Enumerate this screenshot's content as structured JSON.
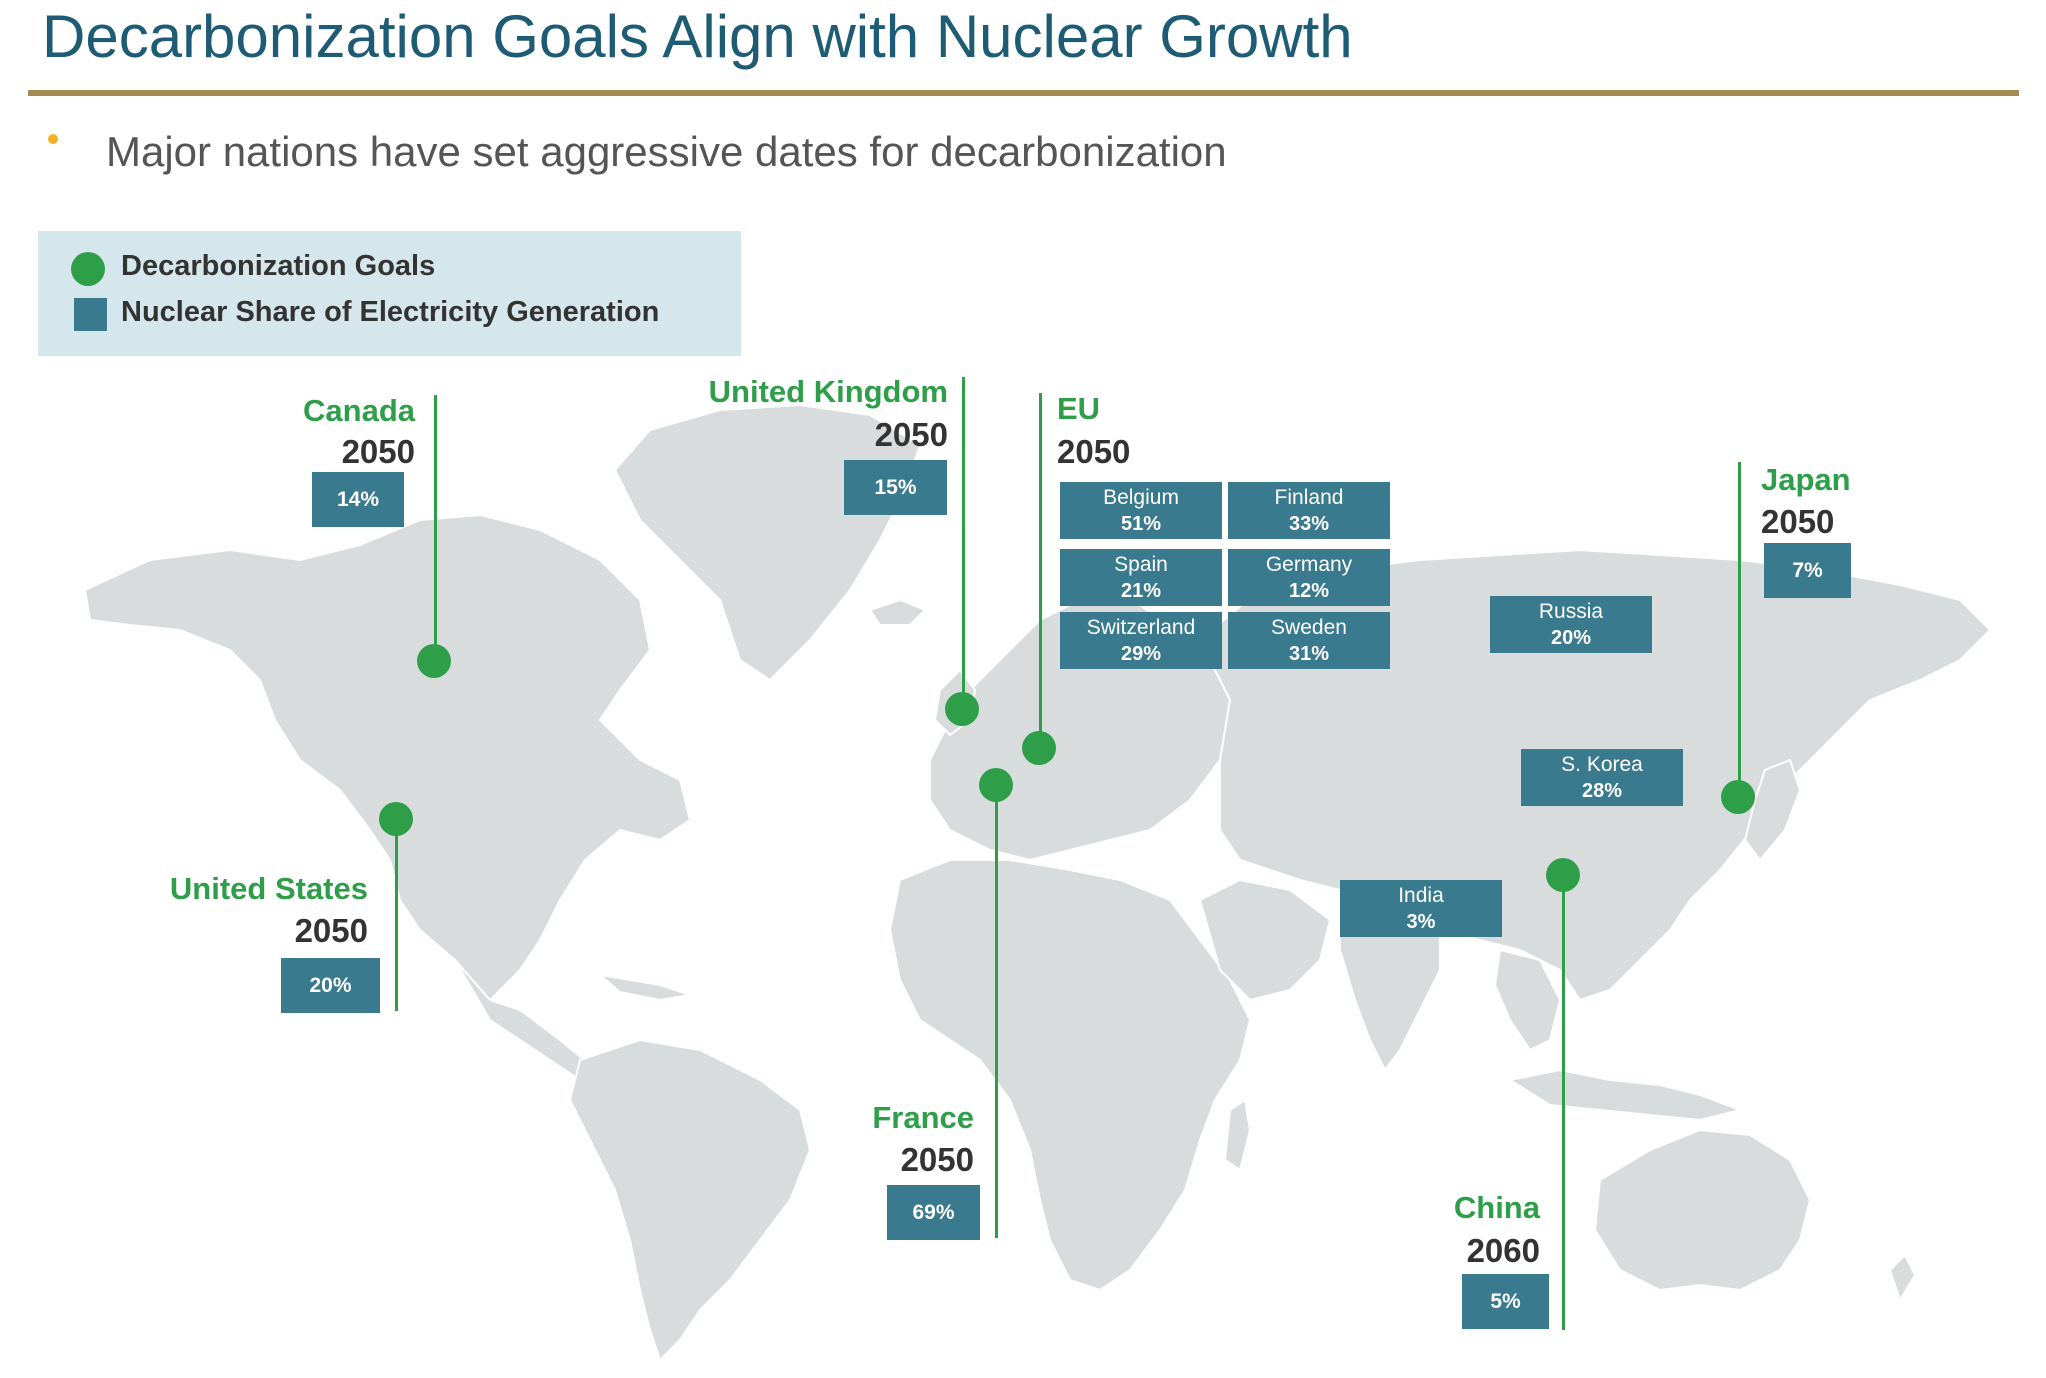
{
  "title": "Decarbonization Goals Align with Nuclear Growth",
  "bullet": "Major nations have set aggressive dates for decarbonization",
  "legend": {
    "goals": "Decarbonization Goals",
    "nuclear": "Nuclear Share of Electricity Generation"
  },
  "colors": {
    "title": "#1e5b74",
    "rule": "#a38c52",
    "goal_green": "#2e9e48",
    "nuclear_teal": "#3a7a8e",
    "land": "#d9dcdd",
    "legend_bg": "#d6e6ed"
  },
  "goals": {
    "canada": {
      "country": "Canada",
      "year": "2050",
      "share": "14%"
    },
    "uk": {
      "country": "United Kingdom",
      "year": "2050",
      "share": "15%"
    },
    "eu": {
      "country": "EU",
      "year": "2050"
    },
    "japan": {
      "country": "Japan",
      "year": "2050",
      "share": "7%"
    },
    "us": {
      "country": "United States",
      "year": "2050",
      "share": "20%"
    },
    "france": {
      "country": "France",
      "year": "2050",
      "share": "69%"
    },
    "china": {
      "country": "China",
      "year": "2060",
      "share": "5%"
    }
  },
  "eu_members": {
    "belgium": {
      "name": "Belgium",
      "share": "51%"
    },
    "finland": {
      "name": "Finland",
      "share": "33%"
    },
    "spain": {
      "name": "Spain",
      "share": "21%"
    },
    "germany": {
      "name": "Germany",
      "share": "12%"
    },
    "switzerland": {
      "name": "Switzerland",
      "share": "29%"
    },
    "sweden": {
      "name": "Sweden",
      "share": "31%"
    }
  },
  "other_nuclear": {
    "russia": {
      "name": "Russia",
      "share": "20%"
    },
    "skorea": {
      "name": "S. Korea",
      "share": "28%"
    },
    "india": {
      "name": "India",
      "share": "3%"
    }
  }
}
